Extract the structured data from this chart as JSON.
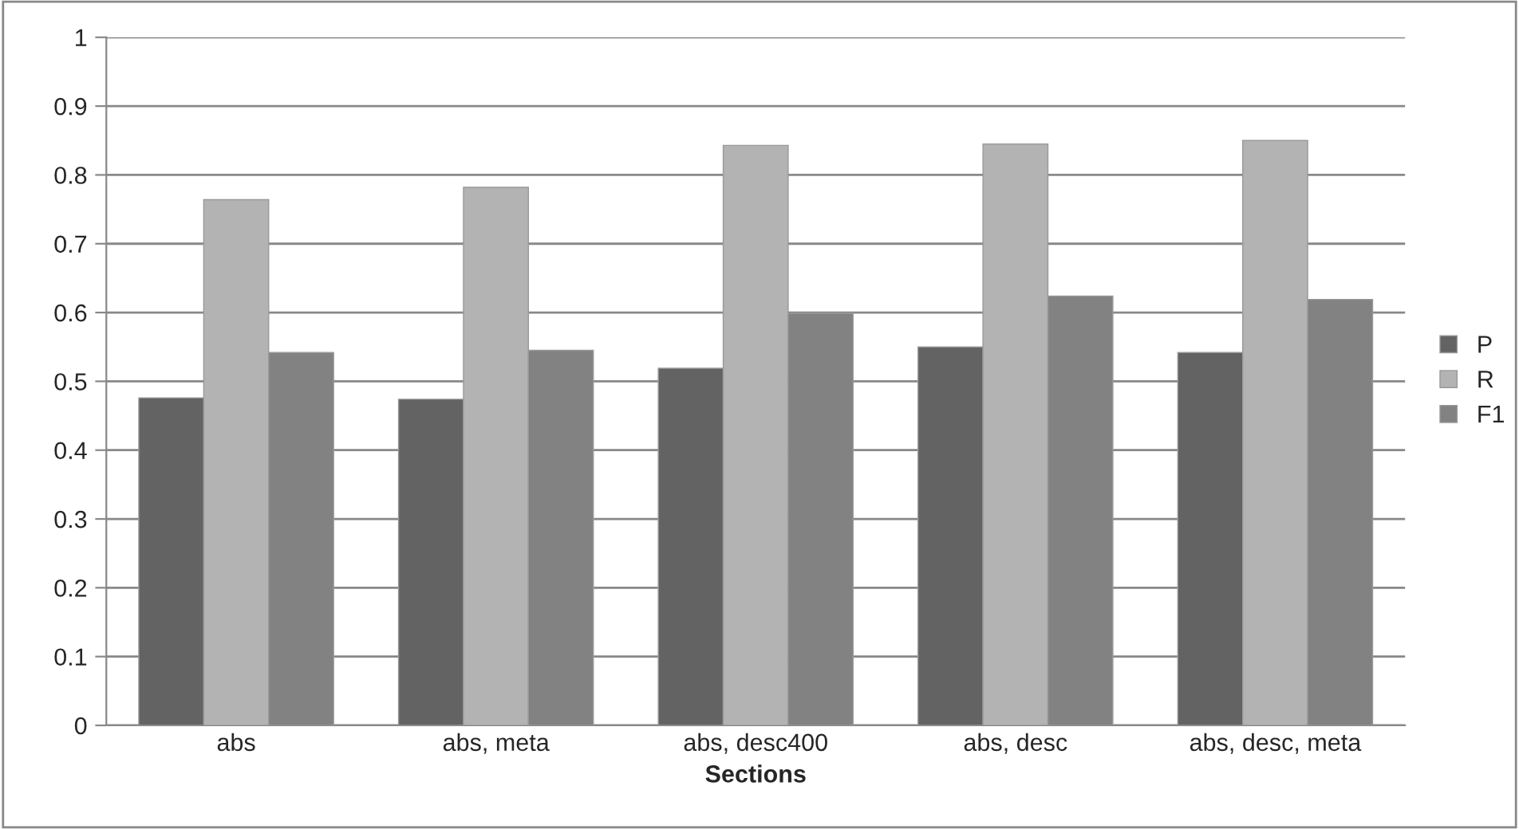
{
  "chart_data": {
    "type": "bar",
    "xlabel": "Sections",
    "categories": [
      "abs",
      "abs, meta",
      "abs, desc400",
      "abs, desc",
      "abs, desc, meta"
    ],
    "series": [
      {
        "name": "P",
        "color": "#636363",
        "values": [
          0.476,
          0.474,
          0.519,
          0.55,
          0.542
        ]
      },
      {
        "name": "R",
        "color": "#b3b3b3",
        "values": [
          0.764,
          0.782,
          0.843,
          0.845,
          0.85
        ]
      },
      {
        "name": "F1",
        "color": "#828282",
        "values": [
          0.542,
          0.545,
          0.599,
          0.624,
          0.619
        ]
      }
    ],
    "ylim": [
      0,
      1
    ],
    "yticks": [
      0,
      0.1,
      0.2,
      0.3,
      0.4,
      0.5,
      0.6,
      0.7,
      0.8,
      0.9,
      1
    ],
    "grid": "y",
    "legend": "right"
  }
}
